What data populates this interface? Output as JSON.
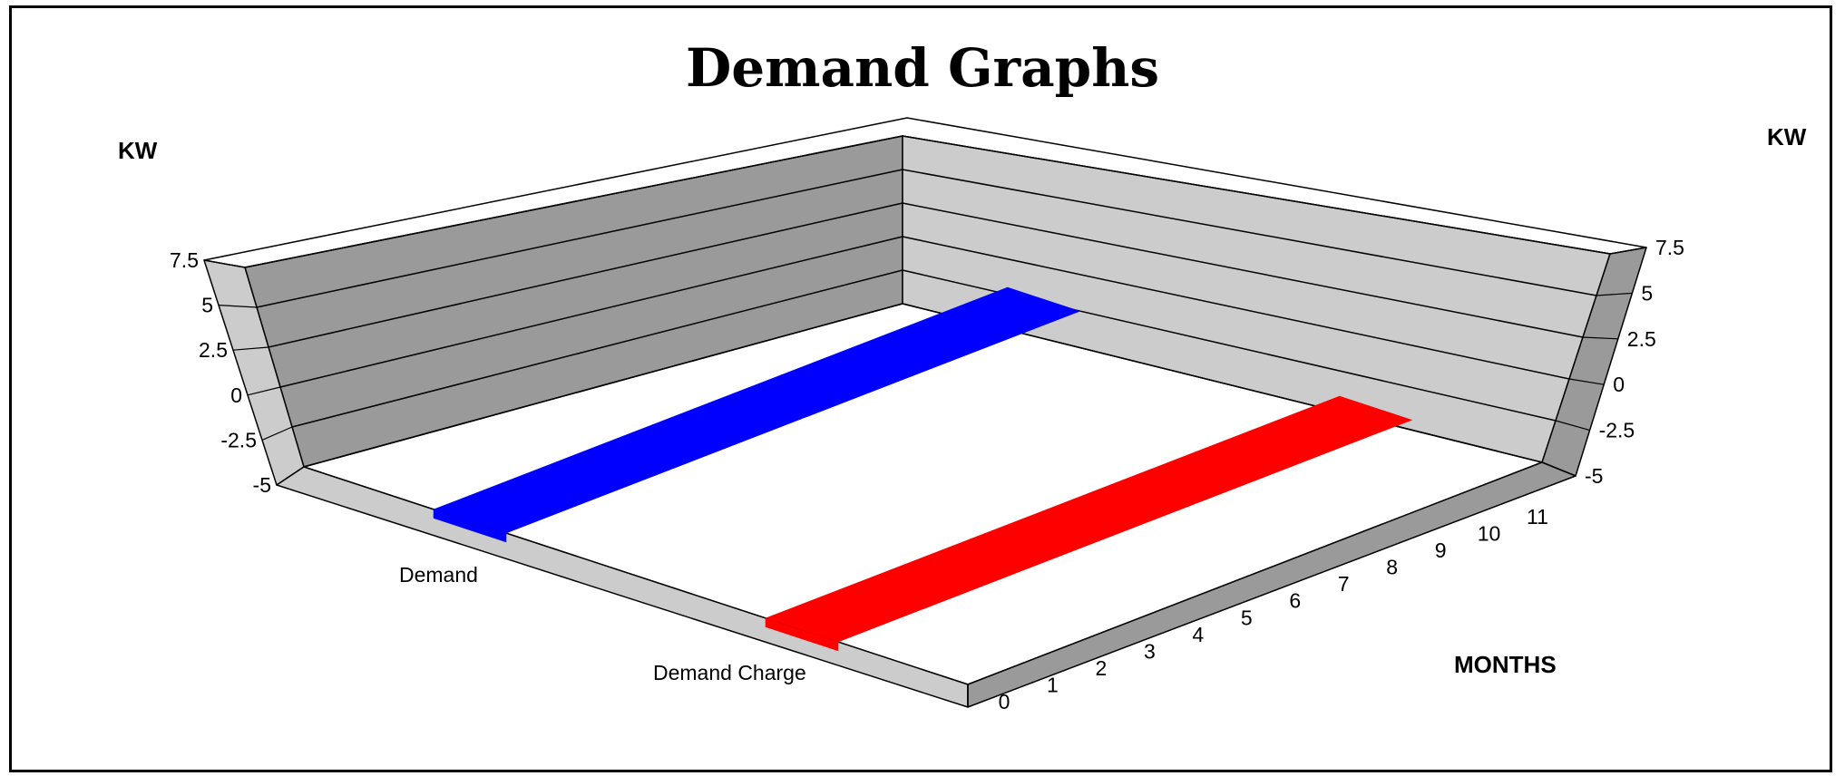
{
  "chart_data": {
    "type": "bar",
    "title": "Demand Graphs",
    "zlabel_left": "KW",
    "zlabel_right": "KW",
    "xlabel": "MONTHS",
    "x": [
      0,
      1,
      2,
      3,
      4,
      5,
      6,
      7,
      8,
      9,
      10,
      11
    ],
    "zticks": [
      "-5",
      "-2.5",
      "0",
      "2.5",
      "5",
      "7.5"
    ],
    "zlim": [
      -5,
      7.5
    ],
    "grid": true,
    "categories": [
      "Demand",
      "Demand Charge"
    ],
    "series": [
      {
        "name": "Demand",
        "color": "#0000ff",
        "values": [
          0,
          0,
          0,
          0,
          0,
          0,
          0,
          0,
          0,
          0,
          0,
          0
        ]
      },
      {
        "name": "Demand Charge",
        "color": "#ff0000",
        "values": [
          0,
          0,
          0,
          0,
          0,
          0,
          0,
          0,
          0,
          0,
          0,
          0
        ]
      }
    ]
  },
  "colors": {
    "wall_left": "#9a9a9a",
    "wall_right": "#cccccc",
    "floor_top": "#ffffff",
    "floor_edge_left": "#cccccc",
    "floor_edge_right": "#9a9a9a",
    "wall_top": "#ffffff"
  }
}
